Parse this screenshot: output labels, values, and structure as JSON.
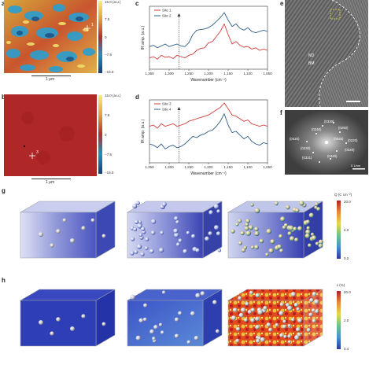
{
  "panels": {
    "a": {
      "label": "a",
      "scalebar": "1 μm",
      "point_label": "1",
      "colorbar_ticks": [
        "15.0 (a.u.)",
        "7.5",
        "0",
        "−7.5",
        "−15.0"
      ]
    },
    "b": {
      "label": "b",
      "scalebar": "1 μm",
      "point_label": "3",
      "colorbar_ticks": [
        "15.0 (a.u.)",
        "7.5",
        "0",
        "−7.5",
        "−15.0"
      ]
    },
    "c": {
      "label": "c",
      "ylabel": "IR amp. (a.u.)",
      "xlabel": "Wavenumber (cm⁻¹)",
      "xticks": [
        "1,350",
        "1,300",
        "1,250",
        "1,200",
        "1,150",
        "1,100",
        "1,050"
      ],
      "legend": [
        "Site 1",
        "Site 2"
      ]
    },
    "d": {
      "label": "d",
      "ylabel": "IR amp. (a.u.)",
      "xlabel": "Wavenumber (cm⁻¹)",
      "xticks": [
        "1,350",
        "1,300",
        "1,250",
        "1,200",
        "1,150",
        "1,100",
        "1,050"
      ],
      "legend": [
        "Site 3",
        "Site 4"
      ]
    },
    "e": {
      "label": "e",
      "region_text": [
        "ND",
        "BM"
      ]
    },
    "f": {
      "label": "f",
      "spot_labels": [
        "(0330)",
        "(0240)",
        "(0250)",
        "(0420)",
        "(0030)",
        "(0220)",
        "(0230)",
        "(0320)",
        "(0440)",
        "(0331)"
      ],
      "scalebar": "5 1/nm"
    },
    "g": {
      "label": "g",
      "colorbar_title": "Q (C cm⁻²)",
      "colorbar_ticks": [
        "20.0",
        "2.0",
        "0.2"
      ]
    },
    "h": {
      "label": "h",
      "colorbar_title": "ε (%)",
      "colorbar_ticks": [
        "20.0",
        "2.0",
        "0.4"
      ]
    }
  },
  "chart_data": [
    {
      "type": "line",
      "panel": "c",
      "xlabel": "Wavenumber (cm⁻¹)",
      "ylabel": "IR amp. (a.u.)",
      "xlim": [
        1350,
        1050
      ],
      "ylim": [
        0,
        1
      ],
      "x": [
        1350,
        1340,
        1330,
        1320,
        1310,
        1300,
        1290,
        1280,
        1270,
        1260,
        1250,
        1240,
        1230,
        1220,
        1210,
        1200,
        1190,
        1180,
        1170,
        1160,
        1150,
        1140,
        1130,
        1120,
        1110,
        1100,
        1090,
        1080,
        1070,
        1060,
        1050
      ],
      "series": [
        {
          "name": "Site 1",
          "color": "#d23b3b",
          "values": [
            0.18,
            0.2,
            0.16,
            0.22,
            0.19,
            0.2,
            0.17,
            0.22,
            0.2,
            0.18,
            0.22,
            0.24,
            0.3,
            0.33,
            0.34,
            0.42,
            0.44,
            0.52,
            0.6,
            0.72,
            0.55,
            0.4,
            0.44,
            0.38,
            0.35,
            0.36,
            0.32,
            0.34,
            0.3,
            0.32,
            0.3
          ]
        },
        {
          "name": "Site 2",
          "color": "#2d5b85",
          "values": [
            0.36,
            0.38,
            0.34,
            0.37,
            0.4,
            0.36,
            0.38,
            0.4,
            0.37,
            0.36,
            0.42,
            0.55,
            0.62,
            0.63,
            0.64,
            0.66,
            0.7,
            0.76,
            0.82,
            0.9,
            0.78,
            0.68,
            0.72,
            0.65,
            0.62,
            0.66,
            0.6,
            0.58,
            0.6,
            0.62,
            0.6
          ]
        }
      ]
    },
    {
      "type": "line",
      "panel": "d",
      "xlabel": "Wavenumber (cm⁻¹)",
      "ylabel": "IR amp. (a.u.)",
      "xlim": [
        1350,
        1050
      ],
      "ylim": [
        0,
        1
      ],
      "x": [
        1350,
        1340,
        1330,
        1320,
        1310,
        1300,
        1290,
        1280,
        1270,
        1260,
        1250,
        1240,
        1230,
        1220,
        1210,
        1200,
        1190,
        1180,
        1170,
        1160,
        1150,
        1140,
        1130,
        1120,
        1110,
        1100,
        1090,
        1080,
        1070,
        1060,
        1050
      ],
      "series": [
        {
          "name": "Site 3",
          "color": "#d23b3b",
          "values": [
            0.58,
            0.6,
            0.55,
            0.62,
            0.58,
            0.6,
            0.62,
            0.58,
            0.6,
            0.62,
            0.66,
            0.68,
            0.7,
            0.72,
            0.74,
            0.76,
            0.8,
            0.84,
            0.88,
            0.95,
            0.86,
            0.76,
            0.74,
            0.7,
            0.66,
            0.68,
            0.62,
            0.6,
            0.58,
            0.6,
            0.58
          ]
        },
        {
          "name": "Site 4",
          "color": "#2d5b85",
          "values": [
            0.3,
            0.28,
            0.24,
            0.3,
            0.22,
            0.26,
            0.28,
            0.24,
            0.26,
            0.3,
            0.36,
            0.42,
            0.4,
            0.44,
            0.46,
            0.5,
            0.52,
            0.58,
            0.66,
            0.78,
            0.6,
            0.48,
            0.5,
            0.44,
            0.38,
            0.42,
            0.34,
            0.3,
            0.28,
            0.32,
            0.3
          ]
        }
      ]
    }
  ]
}
